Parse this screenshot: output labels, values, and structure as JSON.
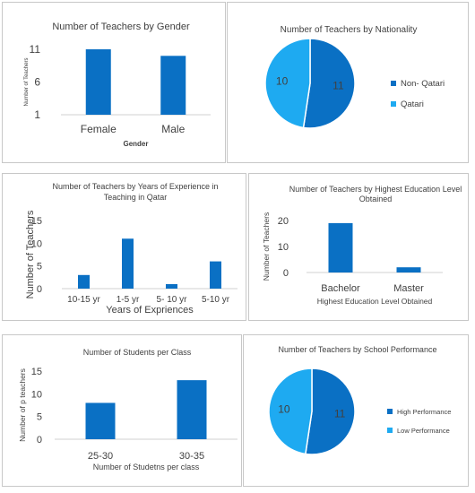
{
  "chart_data": [
    {
      "id": "gender",
      "type": "bar",
      "title": "Number of Teachers by Gender",
      "xlabel": "Gender",
      "ylabel": "Number of Teachers",
      "categories": [
        "Female",
        "Male"
      ],
      "values": [
        11,
        10
      ],
      "ylim": [
        1,
        11
      ],
      "yticks": [
        "1",
        "6",
        "11"
      ],
      "grid": false,
      "colors": {
        "bar": "#0a70c4"
      }
    },
    {
      "id": "nationality",
      "type": "pie",
      "title": "Number of Teachers by Nationality",
      "labels": [
        "Non- Qatari",
        "Qatari"
      ],
      "values": [
        11,
        10
      ],
      "data_labels": [
        "11",
        "10"
      ],
      "legend": "right",
      "colors": {
        "slices": [
          "#0a70c4",
          "#1eaaf1"
        ]
      }
    },
    {
      "id": "experience",
      "type": "bar",
      "title": [
        "Number of Teachers  by Years of Experience in",
        "Teaching in Qatar"
      ],
      "xlabel": "Years of Expriences",
      "ylabel": "Number of Teachers",
      "categories": [
        "10-15 yr",
        "1-5 yr",
        "5- 10 yr",
        "5-10 yr"
      ],
      "values": [
        3,
        11,
        1,
        6
      ],
      "ylim": [
        0,
        15
      ],
      "yticks": [
        "0",
        "5",
        "10",
        "15"
      ],
      "grid": false,
      "colors": {
        "bar": "#0a70c4"
      }
    },
    {
      "id": "education",
      "type": "bar",
      "title": [
        "Number of Teachers by Highest Education Level",
        "Obtained"
      ],
      "xlabel": "Highest Education Level Obtained",
      "ylabel": "Number of Teachers",
      "categories": [
        "Bachelor",
        "Master"
      ],
      "values": [
        19,
        2
      ],
      "ylim": [
        0,
        20
      ],
      "yticks": [
        "0",
        "10",
        "20"
      ],
      "grid": false,
      "colors": {
        "bar": "#0a70c4"
      }
    },
    {
      "id": "students",
      "type": "bar",
      "title": "Number of Students per Class",
      "xlabel": "Number of Studetns per class",
      "ylabel": "Number of p teachers",
      "categories": [
        "25-30",
        "30-35"
      ],
      "values": [
        8,
        13
      ],
      "ylim": [
        0,
        15
      ],
      "yticks": [
        "0",
        "5",
        "10",
        "15"
      ],
      "grid": false,
      "colors": {
        "bar": "#0a70c4"
      }
    },
    {
      "id": "performance",
      "type": "pie",
      "title": "Number of Teachers by School Performance",
      "labels": [
        "High Performance",
        "Low Performance"
      ],
      "values": [
        11,
        10
      ],
      "data_labels": [
        "11",
        "10"
      ],
      "legend": "right",
      "colors": {
        "slices": [
          "#0a70c4",
          "#1eaaf1"
        ]
      }
    }
  ]
}
